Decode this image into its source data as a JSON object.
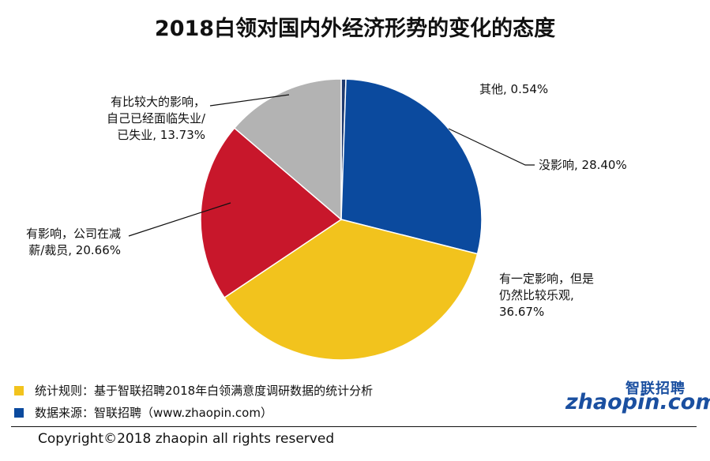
{
  "chart_data": {
    "type": "pie",
    "title": "2018白领对国内外经济形势的变化的态度",
    "slices": [
      {
        "label_lines": [
          "其他, 0.54%"
        ],
        "value": 0.54,
        "color": "#1f3a6e"
      },
      {
        "label_lines": [
          "没影响, 28.40%"
        ],
        "value": 28.4,
        "color": "#0b4a9e"
      },
      {
        "label_lines": [
          "有一定影响，但是",
          "仍然比较乐观,",
          "36.67%"
        ],
        "value": 36.67,
        "color": "#f2c31d"
      },
      {
        "label_lines": [
          "有影响，公司在减",
          "薪/裁员, 20.66%"
        ],
        "value": 20.66,
        "color": "#c8172b"
      },
      {
        "label_lines": [
          "有比较大的影响，",
          "自己已经面临失业/",
          "已失业, 13.73%"
        ],
        "value": 13.73,
        "color": "#b3b3b3"
      }
    ]
  },
  "notes": [
    {
      "text": "统计规则：基于智联招聘2018年白领满意度调研数据的统计分析",
      "color": "#f2c31d"
    },
    {
      "text": "数据来源：智联招聘（www.zhaopin.com）",
      "color": "#0b4a9e"
    }
  ],
  "copyright": "Copyright©2018 zhaopin all rights reserved",
  "logo": {
    "cn": "智联招聘",
    "en": "zhaopin.com"
  }
}
